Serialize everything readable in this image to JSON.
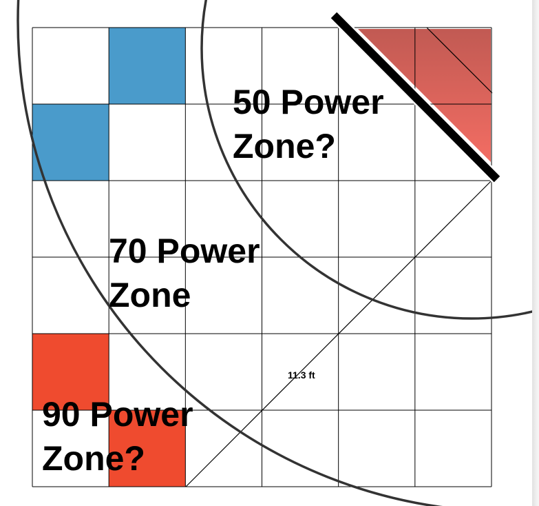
{
  "grid": {
    "rows": 6,
    "cols": 6
  },
  "colors": {
    "blue": "#4a9bcb",
    "red": "#ef4b2f",
    "arc": "#333333",
    "wall": "#000000",
    "corner_light": "#f36d63",
    "corner_dark": "#c15a53"
  },
  "filled_cells": [
    {
      "row": 0,
      "col": 1,
      "color": "blue"
    },
    {
      "row": 1,
      "col": 0,
      "color": "blue"
    },
    {
      "row": 4,
      "col": 0,
      "color": "red"
    },
    {
      "row": 5,
      "col": 1,
      "color": "red"
    }
  ],
  "zones": {
    "zone50": {
      "line1": "50 Power",
      "line2": "Zone?"
    },
    "zone70": {
      "line1": "70 Power",
      "line2": "Zone"
    },
    "zone90": {
      "line1": "90 Power",
      "line2": "Zone?"
    }
  },
  "distance_label": "11.3 ft"
}
